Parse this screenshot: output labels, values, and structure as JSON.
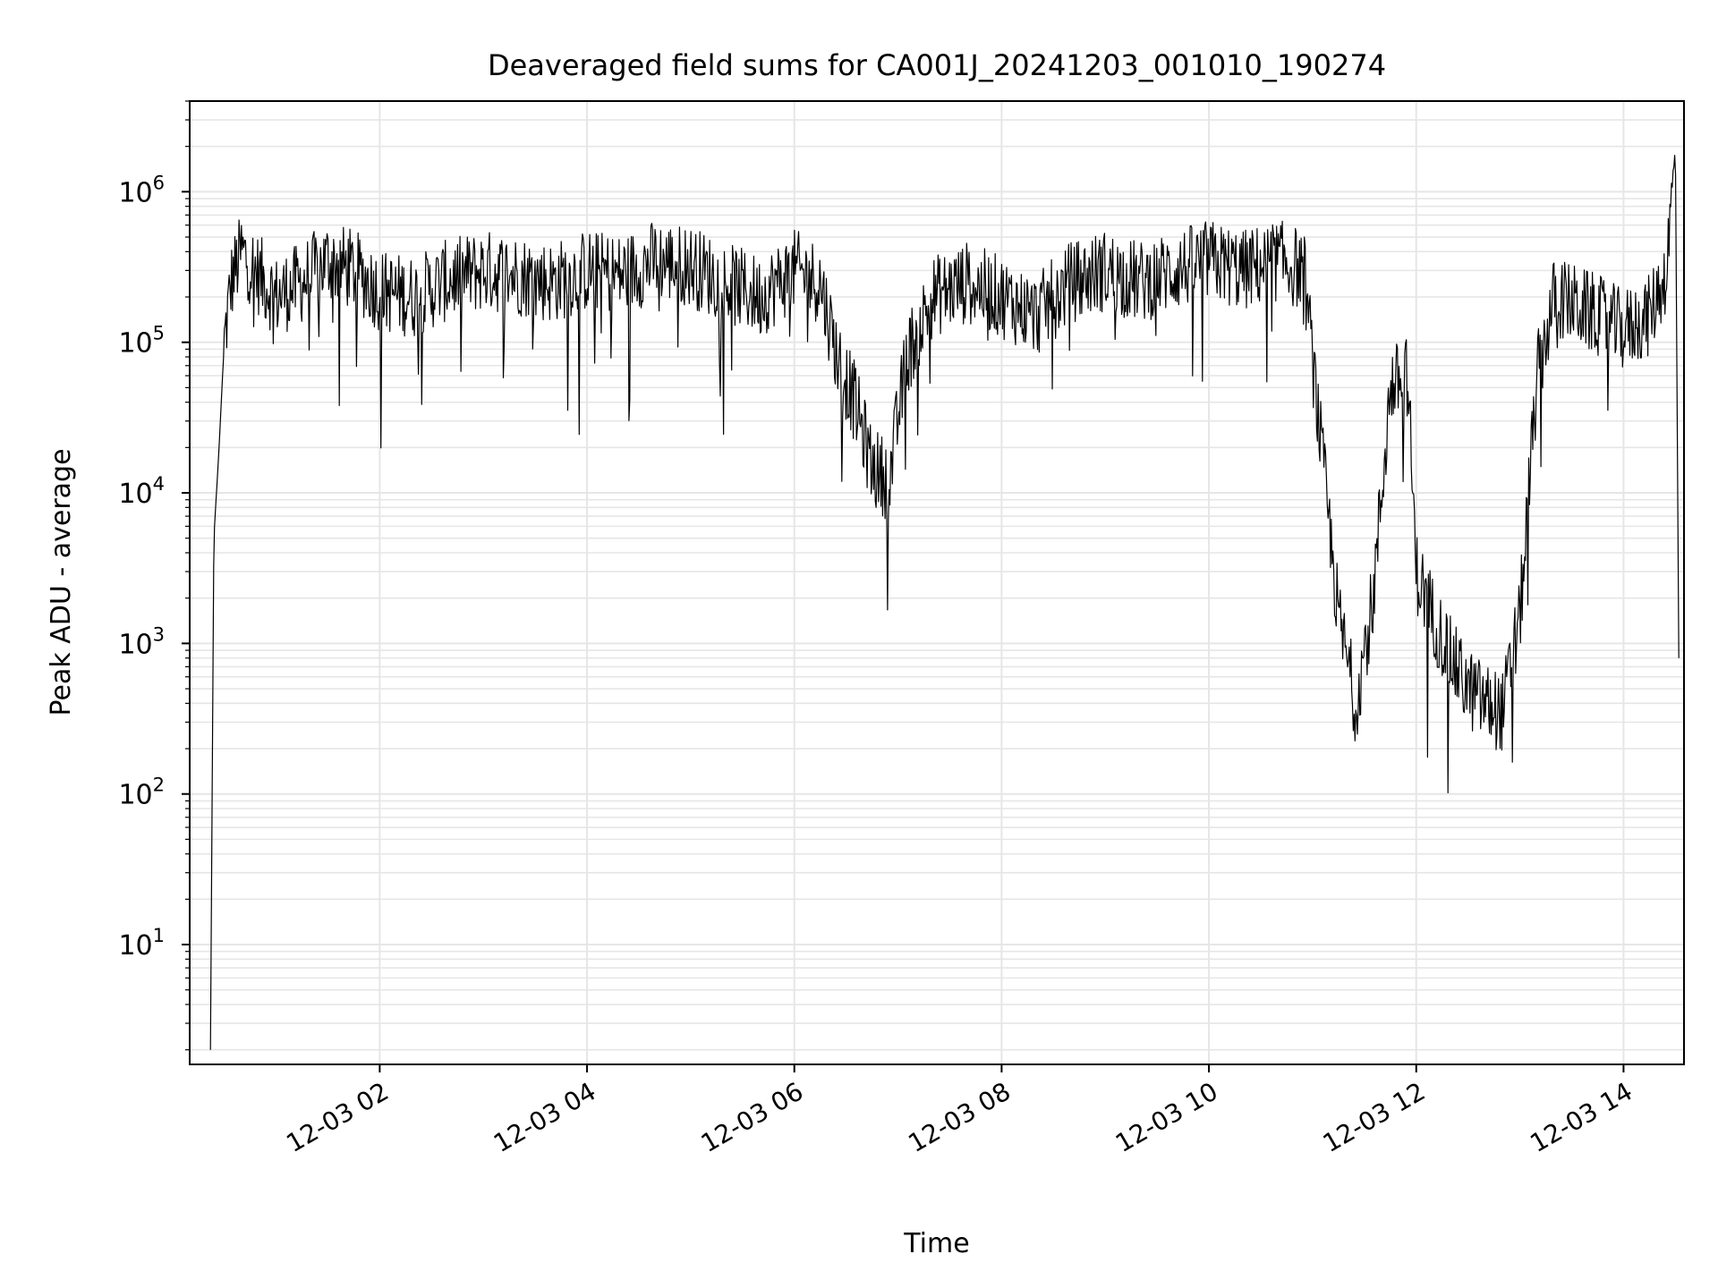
{
  "chart_data": {
    "type": "line",
    "title": "Deaveraged field sums for CA001J_20241203_001010_190274",
    "xlabel": "Time",
    "ylabel": "Peak ADU - average",
    "yscale": "log",
    "xlim": [
      "12-03 00:10",
      "12-03 14:35"
    ],
    "ylim": [
      1.6,
      4000000
    ],
    "x_ticks": [
      "12-03 02",
      "12-03 04",
      "12-03 06",
      "12-03 08",
      "12-03 10",
      "12-03 12",
      "12-03 14"
    ],
    "y_ticks": [
      {
        "value": 10,
        "base": "10",
        "exp": "1"
      },
      {
        "value": 100,
        "base": "10",
        "exp": "2"
      },
      {
        "value": 1000,
        "base": "10",
        "exp": "3"
      },
      {
        "value": 10000,
        "base": "10",
        "exp": "4"
      },
      {
        "value": 100000,
        "base": "10",
        "exp": "5"
      },
      {
        "value": 1000000,
        "base": "10",
        "exp": "6"
      }
    ],
    "grid": true,
    "line_color": "#000000",
    "grid_color": "#e6e6e6",
    "series": [
      {
        "x": [
          "12-03 00:22",
          "12-03 00:24",
          "12-03 00:27",
          "12-03 00:30",
          "12-03 00:34",
          "12-03 00:40",
          "12-03 00:48",
          "12-03 01:00",
          "12-03 01:15",
          "12-03 01:30",
          "12-03 01:45",
          "12-03 02:00",
          "12-03 02:20",
          "12-03 02:40",
          "12-03 03:00",
          "12-03 03:20",
          "12-03 03:40",
          "12-03 04:00",
          "12-03 04:20",
          "12-03 04:40",
          "12-03 05:00",
          "12-03 05:20",
          "12-03 05:40",
          "12-03 06:00",
          "12-03 06:15",
          "12-03 06:25",
          "12-03 06:35",
          "12-03 06:45",
          "12-03 06:55",
          "12-03 07:05",
          "12-03 07:20",
          "12-03 07:40",
          "12-03 08:00",
          "12-03 08:20",
          "12-03 08:40",
          "12-03 09:00",
          "12-03 09:20",
          "12-03 09:40",
          "12-03 10:00",
          "12-03 10:20",
          "12-03 10:40",
          "12-03 10:55",
          "12-03 11:05",
          "12-03 11:15",
          "12-03 11:25",
          "12-03 11:35",
          "12-03 11:45",
          "12-03 11:55",
          "12-03 12:00",
          "12-03 12:10",
          "12-03 12:20",
          "12-03 12:30",
          "12-03 12:40",
          "12-03 12:50",
          "12-03 13:00",
          "12-03 13:10",
          "12-03 13:20",
          "12-03 13:30",
          "12-03 13:45",
          "12-03 14:00",
          "12-03 14:15",
          "12-03 14:25",
          "12-03 14:30",
          "12-03 14:32"
        ],
        "y": [
          2,
          5000,
          20000,
          100000,
          250000,
          400000,
          300000,
          200000,
          250000,
          350000,
          300000,
          220000,
          200000,
          260000,
          300000,
          280000,
          250000,
          300000,
          280000,
          350000,
          320000,
          250000,
          200000,
          300000,
          250000,
          80000,
          40000,
          15000,
          12000,
          80000,
          200000,
          250000,
          200000,
          150000,
          250000,
          300000,
          250000,
          300000,
          350000,
          300000,
          350000,
          300000,
          20000,
          1500,
          400,
          2000,
          50000,
          60000,
          3000,
          1500,
          800,
          500,
          400,
          350,
          1500,
          60000,
          200000,
          180000,
          150000,
          120000,
          150000,
          300000,
          2000000,
          800
        ]
      }
    ]
  }
}
